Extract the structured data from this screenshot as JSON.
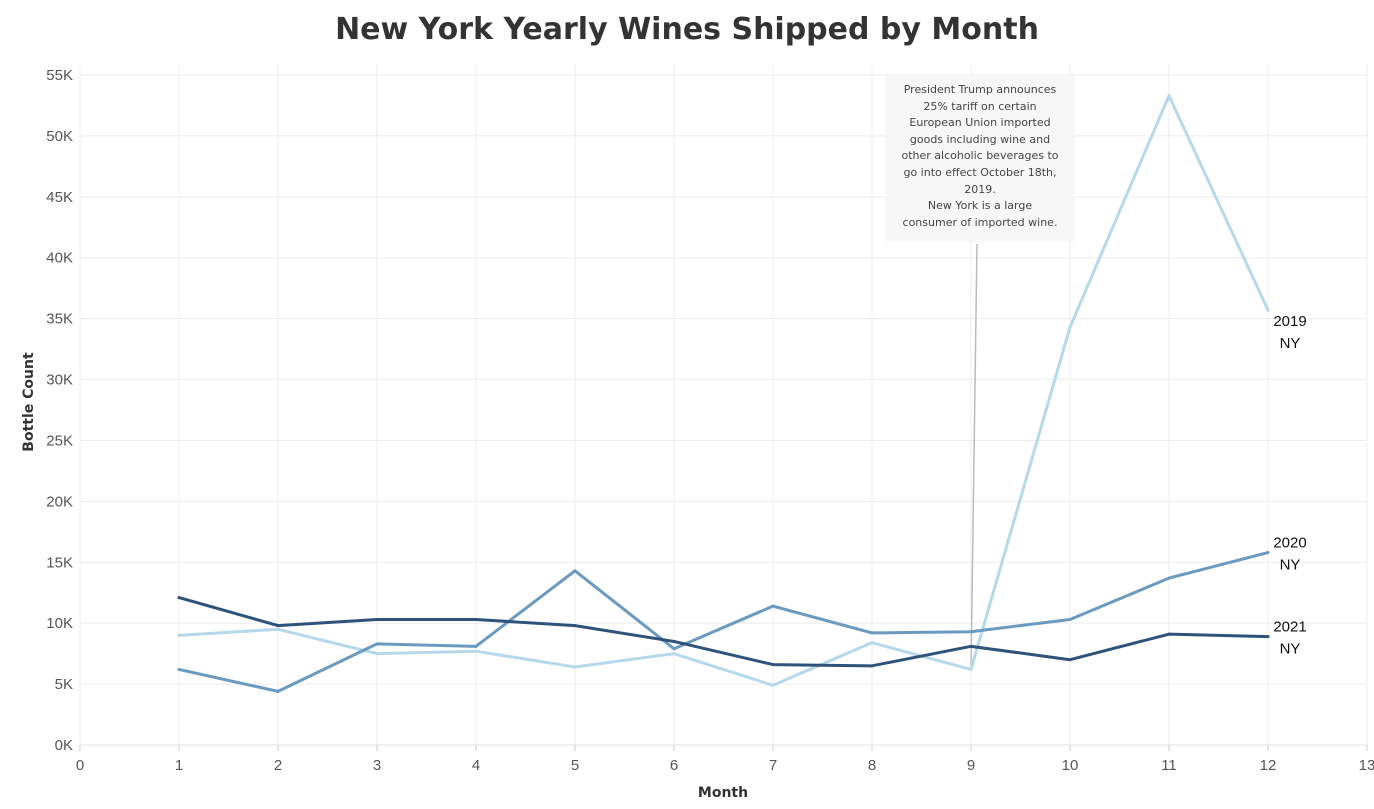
{
  "chart_data": {
    "type": "line",
    "title": "New York Yearly Wines Shipped by Month",
    "xlabel": "Month",
    "ylabel": "Bottle Count",
    "xlim": [
      0,
      13
    ],
    "ylim": [
      0,
      55000
    ],
    "x_ticks": [
      "0",
      "1",
      "2",
      "3",
      "4",
      "5",
      "6",
      "7",
      "8",
      "9",
      "10",
      "11",
      "12",
      "13"
    ],
    "y_ticks": [
      "0K",
      "5K",
      "10K",
      "15K",
      "20K",
      "25K",
      "30K",
      "35K",
      "40K",
      "45K",
      "50K",
      "55K"
    ],
    "grid": true,
    "x": [
      1,
      2,
      3,
      4,
      5,
      6,
      7,
      8,
      9,
      10,
      11,
      12
    ],
    "series": [
      {
        "name": "2019 NY",
        "label_lines": [
          "2019",
          "NY"
        ],
        "color": "#b5d9eb",
        "values": [
          9000,
          9500,
          7500,
          7700,
          6400,
          7500,
          4900,
          8400,
          6200,
          34300,
          53300,
          35700
        ]
      },
      {
        "name": "2020 NY",
        "label_lines": [
          "2020",
          "NY"
        ],
        "color": "#6a9ac0",
        "values": [
          6200,
          4400,
          8300,
          8100,
          14300,
          7900,
          11400,
          9200,
          9300,
          10300,
          13700,
          15800
        ]
      },
      {
        "name": "2021 NY",
        "label_lines": [
          "2021",
          "NY"
        ],
        "color": "#2e537a",
        "values": [
          12100,
          9800,
          10300,
          10300,
          9800,
          8500,
          6600,
          6500,
          8100,
          7000,
          9100,
          8900
        ]
      }
    ],
    "annotation": {
      "text": "President Trump announces 25% tariff on certain European Union imported goods including wine and other alcoholic beverages to go into effect October 18th, 2019.\nNew York is a large consumer of imported wine.",
      "lines": [
        "President Trump announces",
        "25% tariff on certain",
        "European Union imported",
        "goods including wine and",
        "other alcoholic beverages to",
        "go into effect October 18th,",
        "2019.",
        "New York is a large",
        "consumer of imported wine."
      ],
      "x": 9
    }
  }
}
